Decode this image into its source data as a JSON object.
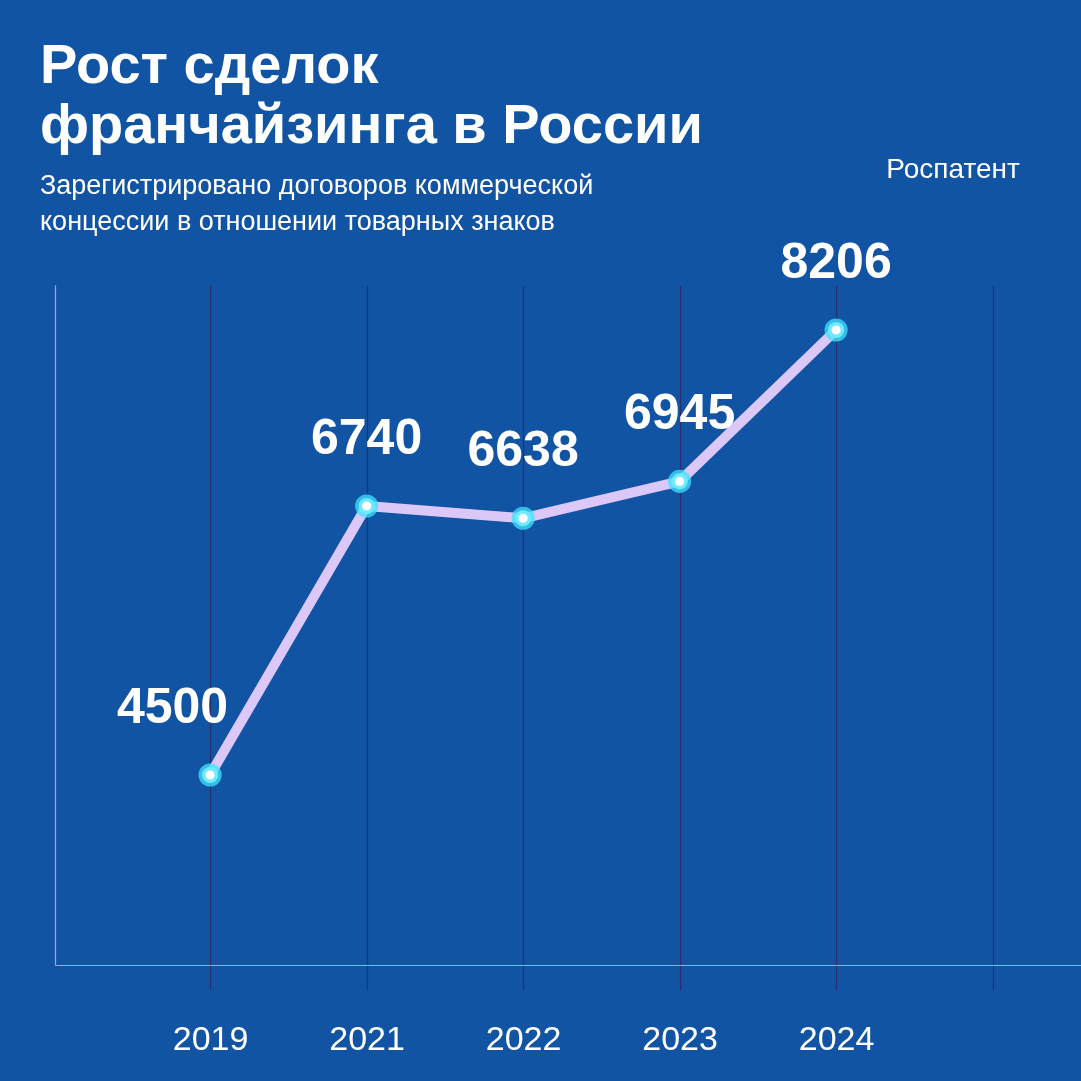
{
  "chart_data": {
    "type": "line",
    "title": "Рост сделок франчайзинга в России",
    "subtitle": "Зарегистрировано договоров коммерческой концессии в отношении товарных знаков",
    "annotations": [
      "Роспатент"
    ],
    "categories": [
      "2019",
      "2021",
      "2022",
      "2023",
      "2024",
      null
    ],
    "series": [
      {
        "color": "#dcc8f8",
        "values": [
          4500,
          6740,
          6638,
          6945,
          8206,
          null
        ]
      }
    ],
    "data_labels": true,
    "marker": "circle",
    "line_style": "solid",
    "grid": "x",
    "tick_labels": "x"
  }
}
